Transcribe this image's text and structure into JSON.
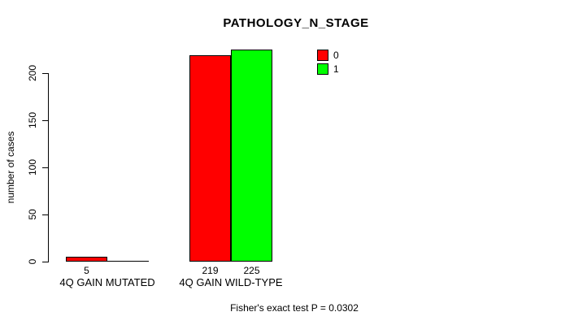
{
  "title": "PATHOLOGY_N_STAGE",
  "footer": "Fisher's exact test P = 0.0302",
  "legend": [
    {
      "label": "0",
      "color": "#ff0000"
    },
    {
      "label": "1",
      "color": "#00ff00"
    }
  ],
  "chart_data": {
    "type": "bar",
    "title": "PATHOLOGY_N_STAGE",
    "xlabel": "",
    "ylabel": "number of cases",
    "categories": [
      "4Q GAIN MUTATED",
      "4Q GAIN WILD-TYPE"
    ],
    "series": [
      {
        "name": "0",
        "color": "#ff0000",
        "values": [
          5,
          219
        ]
      },
      {
        "name": "1",
        "color": "#00ff00",
        "values": [
          0,
          225
        ]
      }
    ],
    "bar_value_labels": [
      [
        "5",
        ""
      ],
      [
        "219",
        "225"
      ]
    ],
    "yticks": [
      0,
      50,
      100,
      150,
      200
    ],
    "ylim": [
      0,
      240
    ],
    "grid": false,
    "legend_position": "topright",
    "annotation": "Fisher's exact test P = 0.0302"
  }
}
